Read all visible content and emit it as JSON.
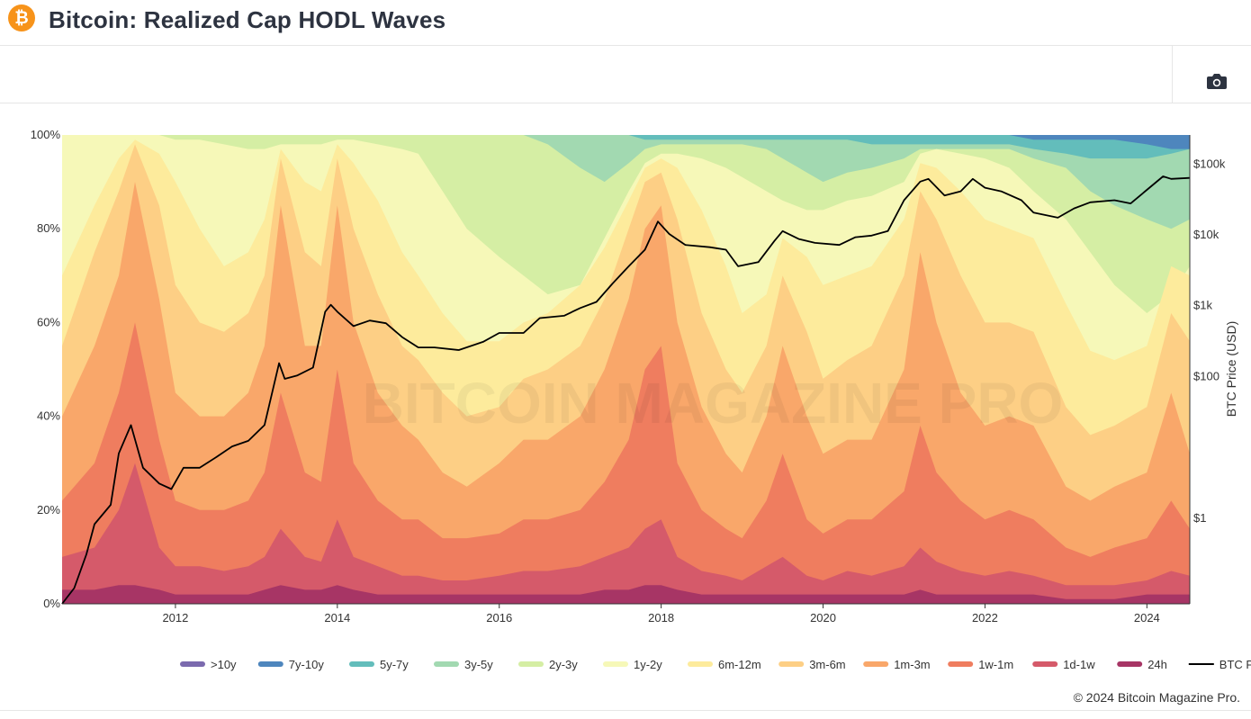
{
  "header": {
    "title": "Bitcoin: Realized Cap HODL Waves",
    "logo_glyph": "₿"
  },
  "toolbar": {
    "camera_icon": "camera-icon"
  },
  "footer": {
    "copyright": "© 2024 Bitcoin Magazine Pro."
  },
  "watermark": "BITCOIN MAGAZINE PRO",
  "chart_data": {
    "type": "area",
    "stacked": true,
    "percent_axis": {
      "ticks": [
        0,
        20,
        40,
        60,
        80,
        100
      ],
      "tick_labels": [
        "0%",
        "20%",
        "40%",
        "60%",
        "80%",
        "100%"
      ]
    },
    "x_axis": {
      "range": [
        2010.6,
        2024.53
      ],
      "ticks": [
        2012,
        2014,
        2016,
        2018,
        2020,
        2022,
        2024
      ]
    },
    "right_axis": {
      "label": "BTC Price (USD)",
      "scale": "log",
      "range": [
        0.06,
        250000
      ],
      "ticks": [
        1,
        100,
        1000,
        10000,
        100000
      ],
      "tick_labels": [
        "$1",
        "$100",
        "$1k",
        "$10k",
        "$100k"
      ]
    },
    "legend_position": "bottom",
    "series_order_bottom_to_top": [
      "24h",
      "1d-1w",
      "1w-1m",
      "1m-3m",
      "3m-6m",
      "6m-12m",
      "1y-2y",
      "2y-3y",
      "3y-5y",
      "5y-7y",
      "7y-10y",
      ">10y"
    ],
    "series": [
      {
        "name": ">10y",
        "color": "#7b6aae"
      },
      {
        "name": "7y-10y",
        "color": "#4e86bd"
      },
      {
        "name": "5y-7y",
        "color": "#63bdbb"
      },
      {
        "name": "3y-5y",
        "color": "#a2d9b1"
      },
      {
        "name": "2y-3y",
        "color": "#d5eea4"
      },
      {
        "name": "1y-2y",
        "color": "#f6f8b8"
      },
      {
        "name": "6m-12m",
        "color": "#fdeb9c"
      },
      {
        "name": "3m-6m",
        "color": "#fdcf85"
      },
      {
        "name": "1m-3m",
        "color": "#f9a76a"
      },
      {
        "name": "1w-1m",
        "color": "#ef7d5f"
      },
      {
        "name": "1d-1w",
        "color": "#d55a6a"
      },
      {
        "name": "24h",
        "color": "#a73565"
      }
    ],
    "boundaries_cumulative_pct": {
      "x": [
        2010.6,
        2011.0,
        2011.3,
        2011.5,
        2011.8,
        2012.0,
        2012.3,
        2012.6,
        2012.9,
        2013.1,
        2013.3,
        2013.6,
        2013.8,
        2014.0,
        2014.2,
        2014.5,
        2014.8,
        2015.0,
        2015.3,
        2015.6,
        2016.0,
        2016.3,
        2016.6,
        2017.0,
        2017.3,
        2017.6,
        2017.8,
        2018.0,
        2018.2,
        2018.5,
        2018.8,
        2019.0,
        2019.3,
        2019.5,
        2019.8,
        2020.0,
        2020.3,
        2020.6,
        2021.0,
        2021.2,
        2021.4,
        2021.7,
        2022.0,
        2022.3,
        2022.6,
        2023.0,
        2023.3,
        2023.6,
        2024.0,
        2024.3,
        2024.53
      ],
      "24h": [
        3,
        3,
        4,
        4,
        3,
        2,
        2,
        2,
        2,
        3,
        4,
        3,
        3,
        4,
        3,
        2,
        2,
        2,
        2,
        2,
        2,
        2,
        2,
        2,
        3,
        3,
        4,
        4,
        3,
        2,
        2,
        2,
        2,
        2,
        2,
        2,
        2,
        2,
        2,
        3,
        2,
        2,
        2,
        2,
        2,
        1,
        1,
        1,
        2,
        2,
        2
      ],
      "1d-1w": [
        10,
        12,
        20,
        30,
        12,
        8,
        8,
        7,
        8,
        10,
        16,
        10,
        9,
        18,
        10,
        8,
        6,
        6,
        5,
        5,
        6,
        7,
        7,
        8,
        10,
        12,
        16,
        18,
        10,
        7,
        6,
        5,
        8,
        10,
        6,
        5,
        7,
        6,
        8,
        12,
        9,
        7,
        6,
        7,
        6,
        4,
        4,
        4,
        5,
        7,
        6
      ],
      "1w-1m": [
        22,
        30,
        45,
        60,
        35,
        22,
        20,
        20,
        22,
        28,
        45,
        28,
        26,
        50,
        30,
        22,
        18,
        18,
        14,
        14,
        15,
        18,
        18,
        20,
        26,
        35,
        50,
        55,
        30,
        20,
        16,
        14,
        22,
        32,
        18,
        15,
        18,
        18,
        24,
        38,
        28,
        22,
        18,
        20,
        18,
        12,
        10,
        12,
        14,
        22,
        16
      ],
      "1m-3m": [
        40,
        55,
        70,
        90,
        65,
        45,
        40,
        40,
        45,
        55,
        85,
        55,
        55,
        85,
        60,
        45,
        38,
        35,
        28,
        25,
        30,
        35,
        35,
        40,
        50,
        65,
        80,
        85,
        60,
        42,
        32,
        28,
        40,
        55,
        40,
        32,
        35,
        35,
        50,
        75,
        60,
        45,
        38,
        40,
        38,
        25,
        22,
        25,
        28,
        45,
        32
      ],
      "3m-6m": [
        55,
        75,
        88,
        98,
        85,
        68,
        60,
        58,
        62,
        70,
        95,
        75,
        72,
        95,
        80,
        66,
        55,
        52,
        45,
        40,
        42,
        48,
        50,
        55,
        65,
        80,
        90,
        92,
        82,
        62,
        50,
        45,
        55,
        70,
        58,
        48,
        52,
        55,
        70,
        88,
        82,
        70,
        60,
        60,
        58,
        42,
        36,
        38,
        42,
        62,
        56
      ],
      "6m-12m": [
        70,
        85,
        95,
        99,
        96,
        90,
        80,
        72,
        75,
        82,
        97,
        90,
        88,
        98,
        94,
        86,
        75,
        70,
        62,
        56,
        56,
        60,
        62,
        68,
        76,
        86,
        93,
        95,
        93,
        84,
        72,
        62,
        66,
        78,
        74,
        68,
        70,
        72,
        82,
        94,
        93,
        88,
        82,
        80,
        78,
        64,
        54,
        52,
        55,
        72,
        70
      ],
      "1y-2y": [
        100,
        100,
        100,
        100,
        100,
        99,
        99,
        98,
        97,
        97,
        98,
        98,
        98,
        99,
        99,
        98,
        97,
        96,
        88,
        80,
        74,
        70,
        66,
        68,
        78,
        88,
        94,
        96,
        96,
        95,
        93,
        91,
        88,
        86,
        84,
        84,
        86,
        87,
        90,
        96,
        97,
        96,
        95,
        93,
        88,
        82,
        75,
        68,
        62,
        66,
        72
      ],
      "2y-3y": [
        100,
        100,
        100,
        100,
        100,
        100,
        100,
        100,
        100,
        100,
        100,
        100,
        100,
        100,
        100,
        100,
        100,
        100,
        100,
        100,
        100,
        100,
        98,
        93,
        90,
        94,
        97,
        98,
        98,
        98,
        98,
        98,
        97,
        95,
        92,
        90,
        92,
        93,
        95,
        97,
        97,
        97,
        97,
        97,
        95,
        93,
        88,
        85,
        82,
        80,
        82
      ],
      "3y-5y": [
        100,
        100,
        100,
        100,
        100,
        100,
        100,
        100,
        100,
        100,
        100,
        100,
        100,
        100,
        100,
        100,
        100,
        100,
        100,
        100,
        100,
        100,
        100,
        100,
        100,
        100,
        99,
        99,
        99,
        99,
        99,
        99,
        99,
        99,
        99,
        99,
        99,
        98,
        98,
        98,
        98,
        98,
        98,
        98,
        97,
        96,
        95,
        95,
        95,
        96,
        97
      ],
      "5y-7y": [
        100,
        100,
        100,
        100,
        100,
        100,
        100,
        100,
        100,
        100,
        100,
        100,
        100,
        100,
        100,
        100,
        100,
        100,
        100,
        100,
        100,
        100,
        100,
        100,
        100,
        100,
        100,
        100,
        100,
        100,
        100,
        100,
        100,
        100,
        100,
        100,
        100,
        100,
        100,
        100,
        100,
        100,
        100,
        100,
        99,
        99,
        99,
        99,
        98,
        97,
        97
      ],
      "7y-10y": [
        100,
        100,
        100,
        100,
        100,
        100,
        100,
        100,
        100,
        100,
        100,
        100,
        100,
        100,
        100,
        100,
        100,
        100,
        100,
        100,
        100,
        100,
        100,
        100,
        100,
        100,
        100,
        100,
        100,
        100,
        100,
        100,
        100,
        100,
        100,
        100,
        100,
        100,
        100,
        100,
        100,
        100,
        100,
        100,
        100,
        100,
        100,
        100,
        100,
        100,
        100
      ],
      ">10y": [
        100,
        100,
        100,
        100,
        100,
        100,
        100,
        100,
        100,
        100,
        100,
        100,
        100,
        100,
        100,
        100,
        100,
        100,
        100,
        100,
        100,
        100,
        100,
        100,
        100,
        100,
        100,
        100,
        100,
        100,
        100,
        100,
        100,
        100,
        100,
        100,
        100,
        100,
        100,
        100,
        100,
        100,
        100,
        100,
        100,
        100,
        100,
        100,
        100,
        100,
        100
      ]
    },
    "btc_price": {
      "name": "BTC Price",
      "color": "#000000",
      "x": [
        2010.6,
        2010.75,
        2010.9,
        2011.0,
        2011.2,
        2011.3,
        2011.45,
        2011.6,
        2011.8,
        2011.95,
        2012.1,
        2012.3,
        2012.5,
        2012.7,
        2012.9,
        2013.1,
        2013.28,
        2013.35,
        2013.5,
        2013.7,
        2013.85,
        2013.92,
        2014.0,
        2014.2,
        2014.4,
        2014.6,
        2014.8,
        2015.0,
        2015.2,
        2015.5,
        2015.8,
        2016.0,
        2016.3,
        2016.5,
        2016.8,
        2017.0,
        2017.2,
        2017.4,
        2017.6,
        2017.8,
        2017.96,
        2018.1,
        2018.3,
        2018.6,
        2018.8,
        2018.95,
        2019.2,
        2019.4,
        2019.5,
        2019.7,
        2019.9,
        2020.2,
        2020.4,
        2020.6,
        2020.8,
        2021.0,
        2021.2,
        2021.3,
        2021.5,
        2021.7,
        2021.85,
        2022.0,
        2022.2,
        2022.45,
        2022.6,
        2022.9,
        2023.1,
        2023.3,
        2023.6,
        2023.8,
        2024.0,
        2024.2,
        2024.3,
        2024.53
      ],
      "y": [
        0.06,
        0.1,
        0.3,
        0.8,
        1.5,
        8,
        20,
        5,
        3,
        2.5,
        5,
        5,
        7,
        10,
        12,
        20,
        150,
        90,
        100,
        130,
        800,
        1000,
        800,
        500,
        600,
        550,
        350,
        250,
        250,
        230,
        300,
        400,
        400,
        650,
        700,
        900,
        1100,
        2000,
        3500,
        6000,
        15000,
        10000,
        7000,
        6500,
        6000,
        3500,
        4000,
        8000,
        11000,
        8500,
        7500,
        7000,
        9000,
        9500,
        11000,
        30000,
        55000,
        60000,
        35000,
        40000,
        60000,
        45000,
        40000,
        30000,
        20000,
        17000,
        23000,
        28000,
        30000,
        27000,
        42000,
        65000,
        60000,
        62000
      ]
    }
  }
}
